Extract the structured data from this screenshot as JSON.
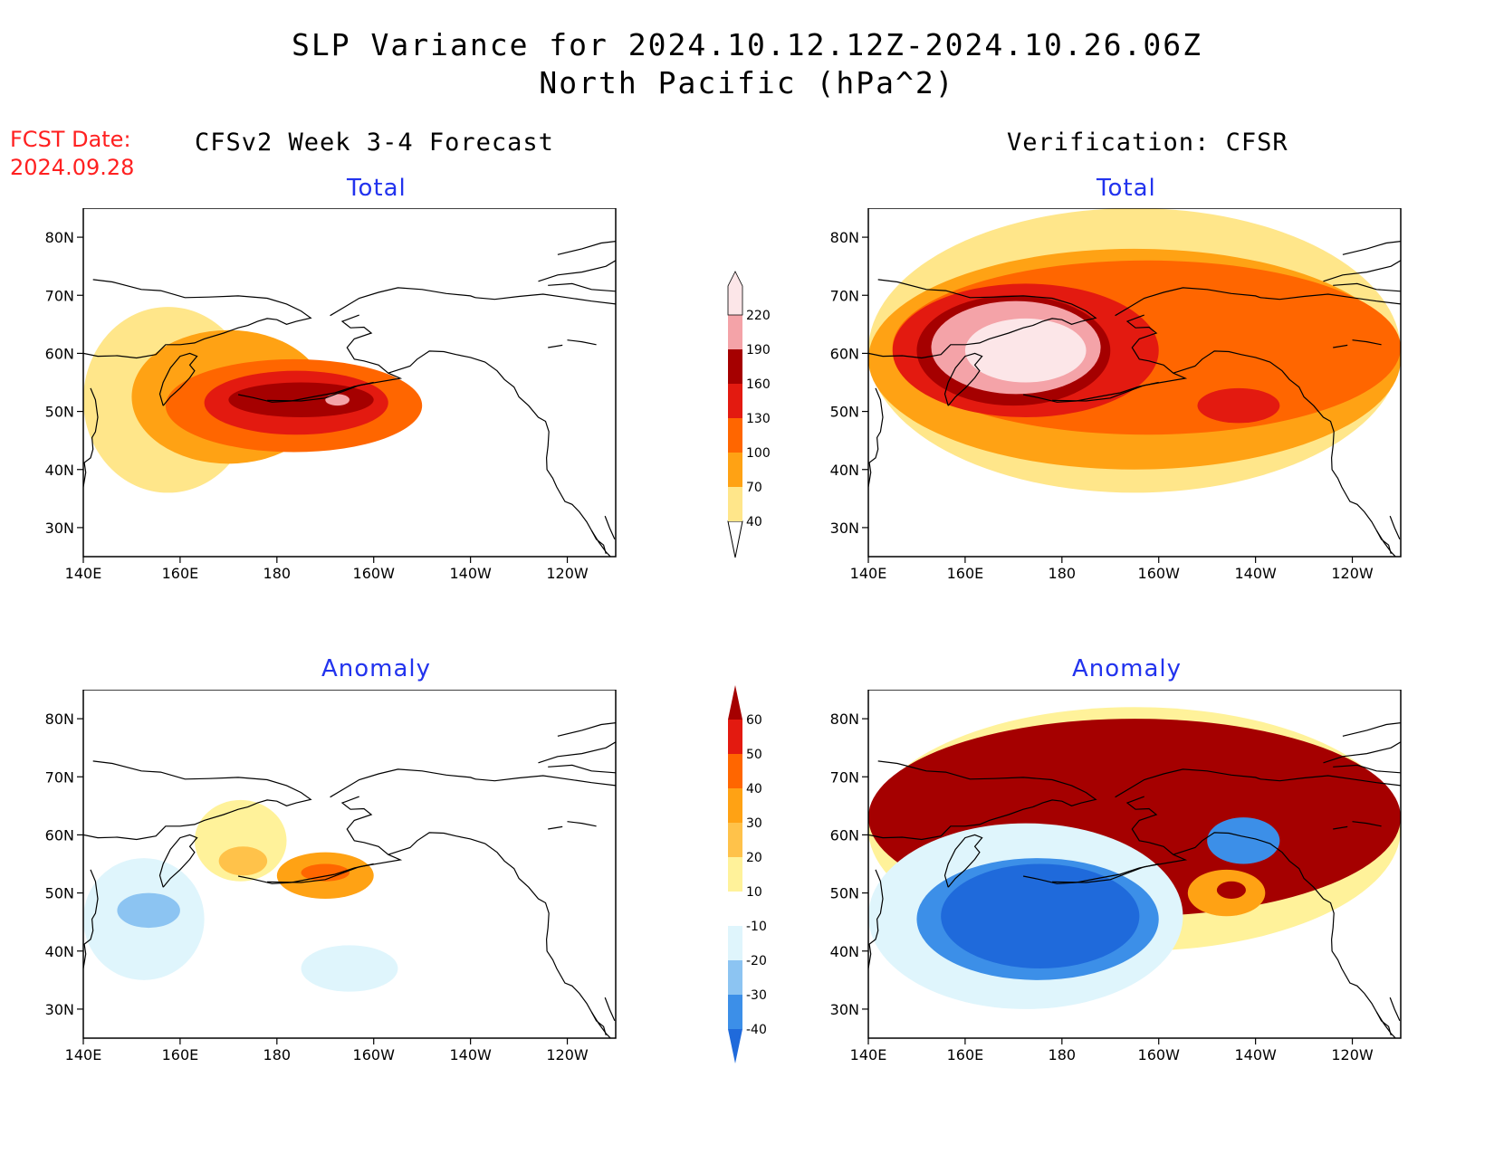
{
  "title_line1": "SLP Variance for 2024.10.12.12Z-2024.10.26.06Z",
  "title_line2": "North Pacific (hPa^2)",
  "fcst_label": "FCST Date:",
  "fcst_date": "2024.09.28",
  "left_column_title": "CFSv2 Week 3-4 Forecast",
  "right_column_title": "Verification: CFSR",
  "panel_titles": {
    "top_left": "Total",
    "top_right": "Total",
    "bottom_left": "Anomaly",
    "bottom_right": "Anomaly"
  },
  "axes": {
    "lat_labels": [
      "80N",
      "70N",
      "60N",
      "50N",
      "40N",
      "30N"
    ],
    "lon_labels": [
      "140E",
      "160E",
      "180",
      "160W",
      "140W",
      "120W"
    ]
  },
  "colorbars": {
    "total": {
      "levels": [
        "40",
        "70",
        "100",
        "130",
        "160",
        "190",
        "220"
      ],
      "colors": [
        "#ffe68a",
        "#ffa214",
        "#ff6600",
        "#e31a10",
        "#a50000",
        "#f4a3a8",
        "#fce6e8"
      ]
    },
    "anomaly": {
      "levels": [
        "-40",
        "-30",
        "-20",
        "-10",
        "10",
        "20",
        "30",
        "40",
        "50",
        "60"
      ],
      "colors": [
        "#1f6adb",
        "#3c8fe8",
        "#8cc4f2",
        "#dff5fc",
        "#ffffff",
        "#fff29a",
        "#ffc24a",
        "#ffa214",
        "#ff6600",
        "#e31a10",
        "#a50000"
      ]
    }
  },
  "map_data": {
    "top_left": [
      {
        "level": 40,
        "lon": [
          140,
          175
        ],
        "lat": [
          36,
          68
        ]
      },
      {
        "level": 70,
        "lon": [
          150,
          190
        ],
        "lat": [
          41,
          64
        ]
      },
      {
        "level": 100,
        "lon": [
          157,
          210
        ],
        "lat": [
          43,
          59
        ]
      },
      {
        "level": 130,
        "lon": [
          165,
          203
        ],
        "lat": [
          46,
          57
        ]
      },
      {
        "level": 160,
        "lon": [
          170,
          200
        ],
        "lat": [
          49,
          55
        ]
      },
      {
        "level": 190,
        "lon": [
          190,
          195
        ],
        "lat": [
          51,
          53
        ]
      }
    ],
    "top_right": [
      {
        "level": 40,
        "lon": [
          140,
          250
        ],
        "lat": [
          36,
          85
        ]
      },
      {
        "level": 70,
        "lon": [
          140,
          250
        ],
        "lat": [
          40,
          78
        ]
      },
      {
        "level": 100,
        "lon": [
          145,
          250
        ],
        "lat": [
          46,
          76
        ]
      },
      {
        "level": 130,
        "lon": [
          145,
          200
        ],
        "lat": [
          49,
          72
        ]
      },
      {
        "level": 160,
        "lon": [
          150,
          190
        ],
        "lat": [
          51,
          70
        ]
      },
      {
        "level": 190,
        "lon": [
          153,
          188
        ],
        "lat": [
          53,
          69
        ]
      },
      {
        "level": 220,
        "lon": [
          160,
          185
        ],
        "lat": [
          55,
          66
        ]
      },
      {
        "level": 130,
        "lon": [
          208,
          225
        ],
        "lat": [
          48,
          54
        ]
      }
    ],
    "bottom_left": [
      {
        "level": 10,
        "lon": [
          163,
          182
        ],
        "lat": [
          52,
          66
        ]
      },
      {
        "level": 20,
        "lon": [
          168,
          178
        ],
        "lat": [
          53,
          58
        ]
      },
      {
        "level": 30,
        "lon": [
          180,
          200
        ],
        "lat": [
          49,
          57
        ]
      },
      {
        "level": 40,
        "lon": [
          185,
          195
        ],
        "lat": [
          52,
          55
        ]
      },
      {
        "level": -10,
        "lon": [
          140,
          165
        ],
        "lat": [
          35,
          56
        ]
      },
      {
        "level": -20,
        "lon": [
          147,
          160
        ],
        "lat": [
          44,
          50
        ]
      },
      {
        "level": -10,
        "lon": [
          185,
          205
        ],
        "lat": [
          33,
          41
        ]
      }
    ],
    "bottom_right": [
      {
        "level": 10,
        "lon": [
          140,
          250
        ],
        "lat": [
          40,
          82
        ]
      },
      {
        "level": 60,
        "lon": [
          140,
          250
        ],
        "lat": [
          46,
          80
        ]
      },
      {
        "level": -10,
        "lon": [
          140,
          205
        ],
        "lat": [
          30,
          62
        ]
      },
      {
        "level": -30,
        "lon": [
          150,
          200
        ],
        "lat": [
          35,
          56
        ]
      },
      {
        "level": -40,
        "lon": [
          155,
          196
        ],
        "lat": [
          37,
          55
        ]
      },
      {
        "level": -30,
        "lon": [
          210,
          225
        ],
        "lat": [
          55,
          63
        ]
      },
      {
        "level": 30,
        "lon": [
          206,
          222
        ],
        "lat": [
          46,
          54
        ]
      },
      {
        "level": 60,
        "lon": [
          212,
          218
        ],
        "lat": [
          49,
          52
        ]
      }
    ]
  }
}
